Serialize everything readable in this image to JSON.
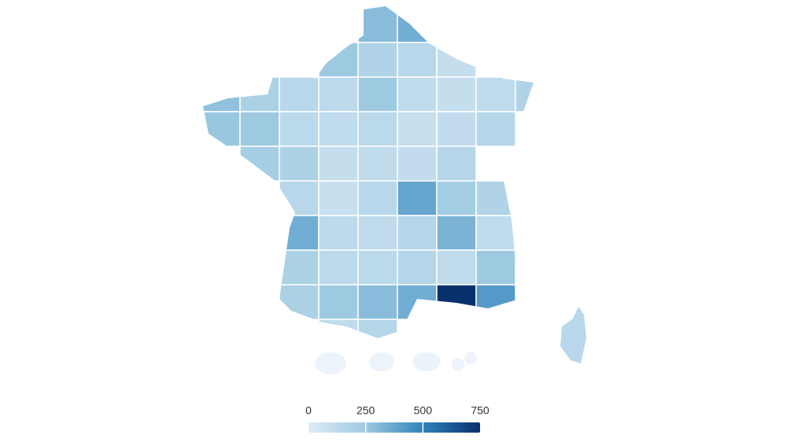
{
  "chart_data": {
    "type": "choropleth",
    "values": [
      300,
      350,
      250,
      180,
      150,
      100,
      280,
      200,
      150,
      130,
      250,
      120,
      100,
      120,
      180,
      260,
      250,
      140,
      120,
      140,
      90,
      110,
      160,
      220,
      190,
      100,
      120,
      110,
      160,
      150,
      90,
      150,
      380,
      230,
      180,
      350,
      130,
      120,
      160,
      330,
      120,
      200,
      130,
      140,
      160,
      120,
      250,
      200,
      250,
      300,
      350,
      750,
      420,
      120,
      160,
      150,
      20,
      20,
      30,
      20,
      20
    ],
    "colors": [
      "#deebf7",
      "#9ecae1",
      "#3182bd",
      "#08306b"
    ],
    "scale_range": [
      0,
      750
    ],
    "scale_ticks": [
      0,
      250,
      500,
      750
    ]
  }
}
